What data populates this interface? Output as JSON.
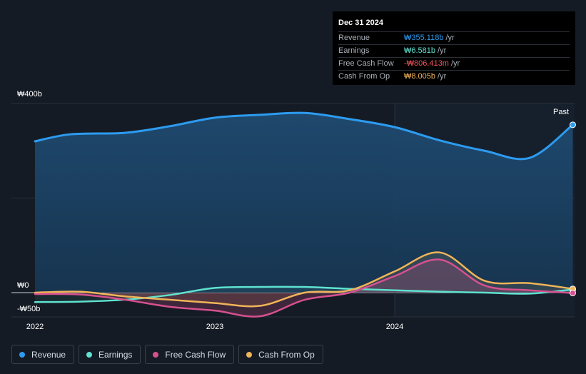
{
  "tooltip": {
    "date": "Dec 31 2024",
    "rows": [
      {
        "label": "Revenue",
        "value": "₩355.118b",
        "unit": "/yr",
        "color": "#2d9bf0"
      },
      {
        "label": "Earnings",
        "value": "₩6.581b",
        "unit": "/yr",
        "color": "#5fe2d0"
      },
      {
        "label": "Free Cash Flow",
        "value": "-₩806.413m",
        "unit": "/yr",
        "color": "#f2545b"
      },
      {
        "label": "Cash From Op",
        "value": "₩8.005b",
        "unit": "/yr",
        "color": "#f0b458"
      }
    ]
  },
  "past_label": "Past",
  "legend": [
    {
      "label": "Revenue",
      "color": "#2d9bf0"
    },
    {
      "label": "Earnings",
      "color": "#5fe2d0"
    },
    {
      "label": "Free Cash Flow",
      "color": "#d6508f"
    },
    {
      "label": "Cash From Op",
      "color": "#f0b458"
    }
  ],
  "chart_data": {
    "type": "line",
    "y_tick_labels": [
      "₩400b",
      "₩0",
      "-₩50b"
    ],
    "x_tick_labels": [
      "2022",
      "2023",
      "2024"
    ],
    "ylim": [
      -50,
      400
    ],
    "xlim": [
      2021.9,
      2024.99
    ],
    "series": [
      {
        "name": "Revenue",
        "color": "#2d9bf0",
        "x": [
          2022.0,
          2022.2,
          2022.5,
          2022.75,
          2023.0,
          2023.25,
          2023.5,
          2023.75,
          2024.0,
          2024.25,
          2024.5,
          2024.75,
          2024.99
        ],
        "values": [
          320,
          335,
          338,
          352,
          370,
          376,
          380,
          367,
          350,
          322,
          300,
          285,
          355
        ]
      },
      {
        "name": "Earnings",
        "color": "#5fe2d0",
        "x": [
          2022.0,
          2022.25,
          2022.5,
          2022.75,
          2023.0,
          2023.25,
          2023.5,
          2023.75,
          2024.0,
          2024.25,
          2024.5,
          2024.75,
          2024.99
        ],
        "values": [
          -20,
          -19,
          -15,
          -5,
          10,
          12,
          12,
          8,
          5,
          2,
          0,
          -2,
          6.6
        ]
      },
      {
        "name": "Free Cash Flow",
        "color": "#d6508f",
        "x": [
          2022.0,
          2022.25,
          2022.5,
          2022.75,
          2023.0,
          2023.25,
          2023.5,
          2023.75,
          2024.0,
          2024.25,
          2024.5,
          2024.75,
          2024.99
        ],
        "values": [
          -3,
          -4,
          -15,
          -30,
          -38,
          -50,
          -15,
          0,
          35,
          70,
          15,
          5,
          -0.8
        ]
      },
      {
        "name": "Cash From Op",
        "color": "#f0b458",
        "x": [
          2022.0,
          2022.25,
          2022.5,
          2022.75,
          2023.0,
          2023.25,
          2023.5,
          2023.75,
          2024.0,
          2024.25,
          2024.5,
          2024.75,
          2024.99
        ],
        "values": [
          0,
          2,
          -8,
          -15,
          -22,
          -28,
          0,
          5,
          45,
          85,
          25,
          20,
          8
        ]
      }
    ]
  }
}
